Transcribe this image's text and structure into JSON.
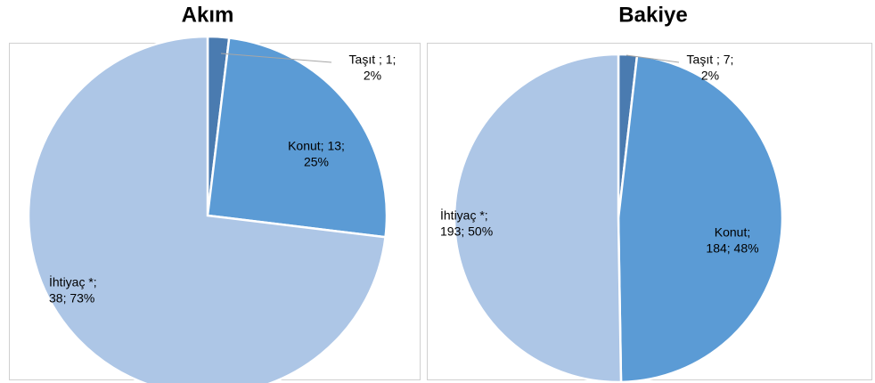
{
  "chart_data": [
    {
      "type": "pie",
      "title": "Akım",
      "values": [
        1,
        13,
        38
      ],
      "value_labels": [
        [
          "Taşıt ; 1;",
          "2%"
        ],
        [
          "Konut; 13;",
          "25%"
        ],
        [
          "İhtiyaç *;",
          "38; 73%"
        ]
      ],
      "colors": [
        "#4a7bb0",
        "#5b9bd5",
        "#adc6e6"
      ]
    },
    {
      "type": "pie",
      "title": "Bakiye",
      "values": [
        7,
        184,
        193
      ],
      "value_labels": [
        [
          "Taşıt ; 7;",
          "2%"
        ],
        [
          "Konut;",
          "184; 48%"
        ],
        [
          "İhtiyaç *;",
          "193; 50%"
        ]
      ],
      "colors": [
        "#4a7bb0",
        "#5b9bd5",
        "#adc6e6"
      ]
    }
  ]
}
